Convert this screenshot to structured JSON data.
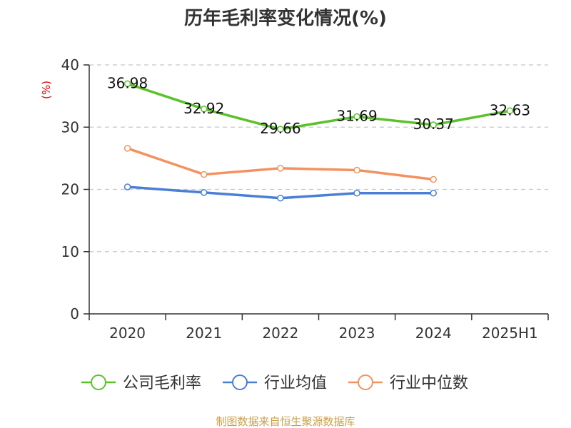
{
  "chart_data": {
    "type": "line",
    "title": "历年毛利率变化情况(%)",
    "ylabel": "(%)",
    "categories": [
      "2020",
      "2021",
      "2022",
      "2023",
      "2024",
      "2025H1"
    ],
    "ylim": [
      0,
      40
    ],
    "yticks": [
      0,
      10,
      20,
      30,
      40
    ],
    "grid": true,
    "legend_position": "bottom",
    "series": [
      {
        "name": "公司毛利率",
        "color": "#5bc22b",
        "values": [
          36.98,
          32.92,
          29.66,
          31.69,
          30.37,
          32.63
        ],
        "labels": [
          "36.98",
          "32.92",
          "29.66",
          "31.69",
          "30.37",
          "32.63"
        ]
      },
      {
        "name": "行业均值",
        "color": "#4a7fd6",
        "values": [
          20.4,
          19.5,
          18.6,
          19.4,
          19.4,
          null
        ]
      },
      {
        "name": "行业中位数",
        "color": "#f39260",
        "values": [
          26.6,
          22.4,
          23.4,
          23.1,
          21.6,
          null
        ]
      }
    ]
  },
  "source_text": "制图数据来自恒生聚源数据库"
}
